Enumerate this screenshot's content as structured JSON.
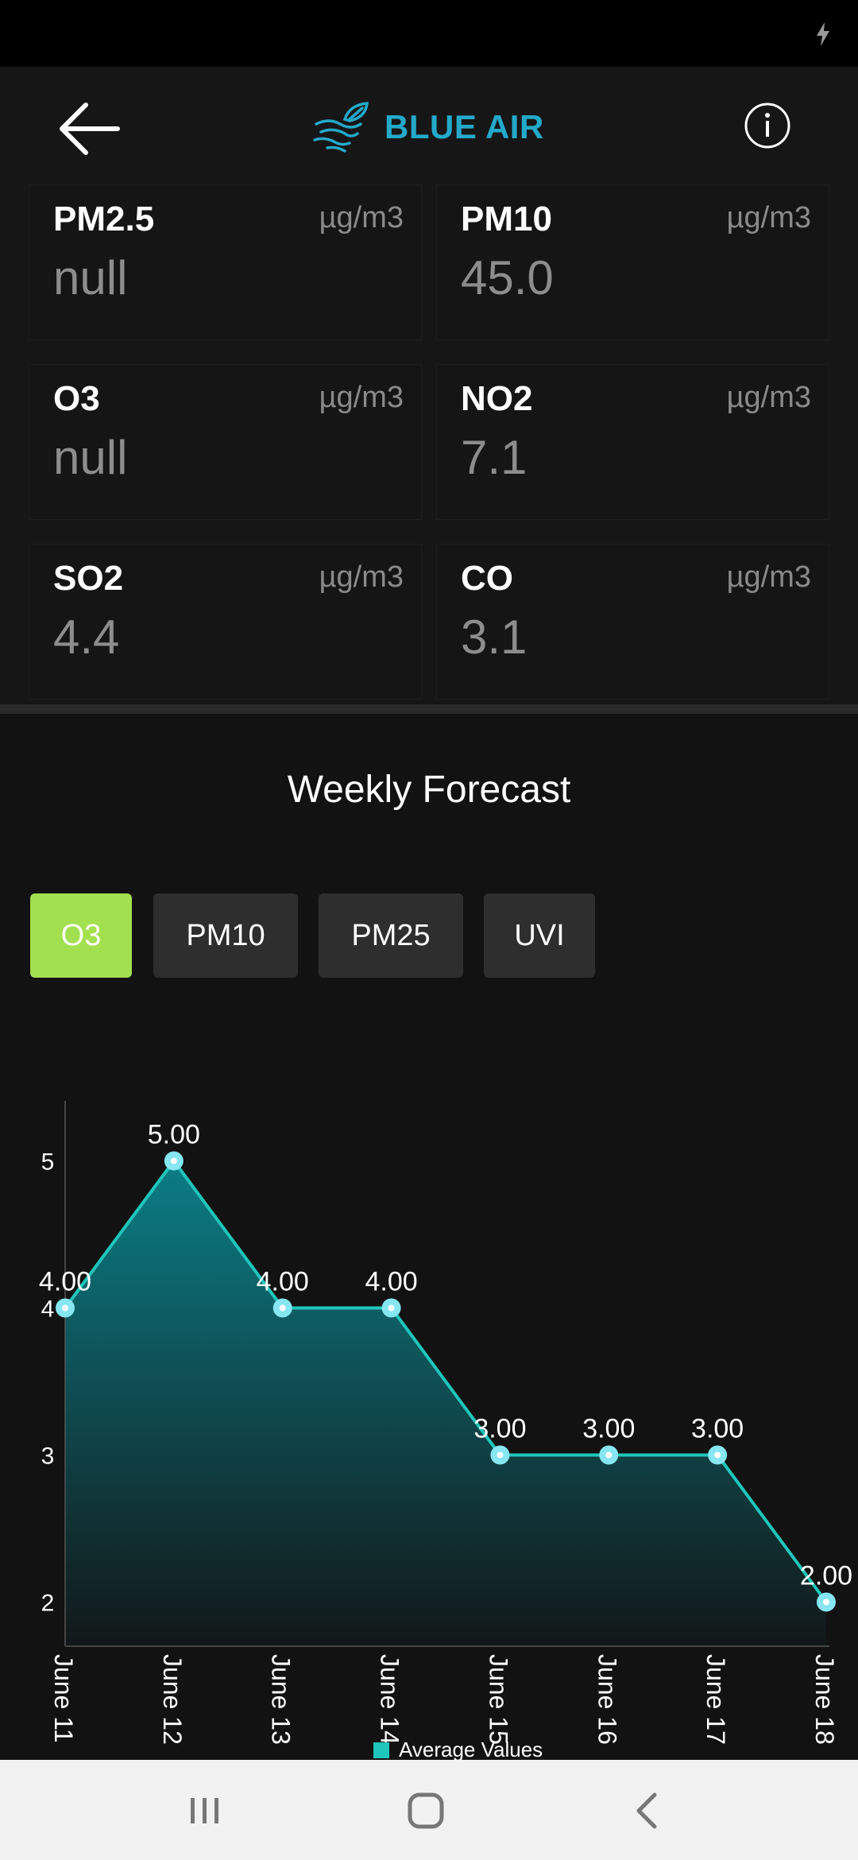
{
  "app": {
    "title": "BLUE AIR",
    "accent": "#23a9c9",
    "icons": {
      "back": "arrow-left-icon",
      "logo": "wind-leaf-icon",
      "info": "info-circle-icon"
    }
  },
  "pollutants": [
    {
      "name": "PM2.5",
      "unit": "µg/m3",
      "value": "null"
    },
    {
      "name": "PM10",
      "unit": "µg/m3",
      "value": "45.0"
    },
    {
      "name": "O3",
      "unit": "µg/m3",
      "value": "null"
    },
    {
      "name": "NO2",
      "unit": "µg/m3",
      "value": "7.1"
    },
    {
      "name": "SO2",
      "unit": "µg/m3",
      "value": "4.4"
    },
    {
      "name": "CO",
      "unit": "µg/m3",
      "value": "3.1"
    }
  ],
  "forecast": {
    "title": "Weekly Forecast",
    "tabs": [
      "O3",
      "PM10",
      "PM25",
      "UVI"
    ],
    "active_tab": "O3",
    "active_color": "#a3e04f"
  },
  "chart_data": {
    "type": "area",
    "categories": [
      "June 11",
      "June 12",
      "June 13",
      "June 14",
      "June 15",
      "June 16",
      "June 17",
      "June 18"
    ],
    "values": [
      4,
      5,
      4,
      4,
      3,
      3,
      3,
      2
    ],
    "data_labels": [
      "4.00",
      "5.00",
      "4.00",
      "4.00",
      "3.00",
      "3.00",
      "3.00",
      "2.00"
    ],
    "yticks": [
      "2",
      "3",
      "4",
      "5"
    ],
    "ylim": [
      1.7,
      5.3
    ],
    "legend": "Average Values",
    "legend_position": "bottom-center",
    "line_color": "#1fc6bb",
    "fill_color": "#0b7d86",
    "point_color": "#86e6f2",
    "grid": false
  },
  "nav": {
    "icons": [
      "recents-icon",
      "home-icon",
      "back-nav-icon"
    ]
  }
}
